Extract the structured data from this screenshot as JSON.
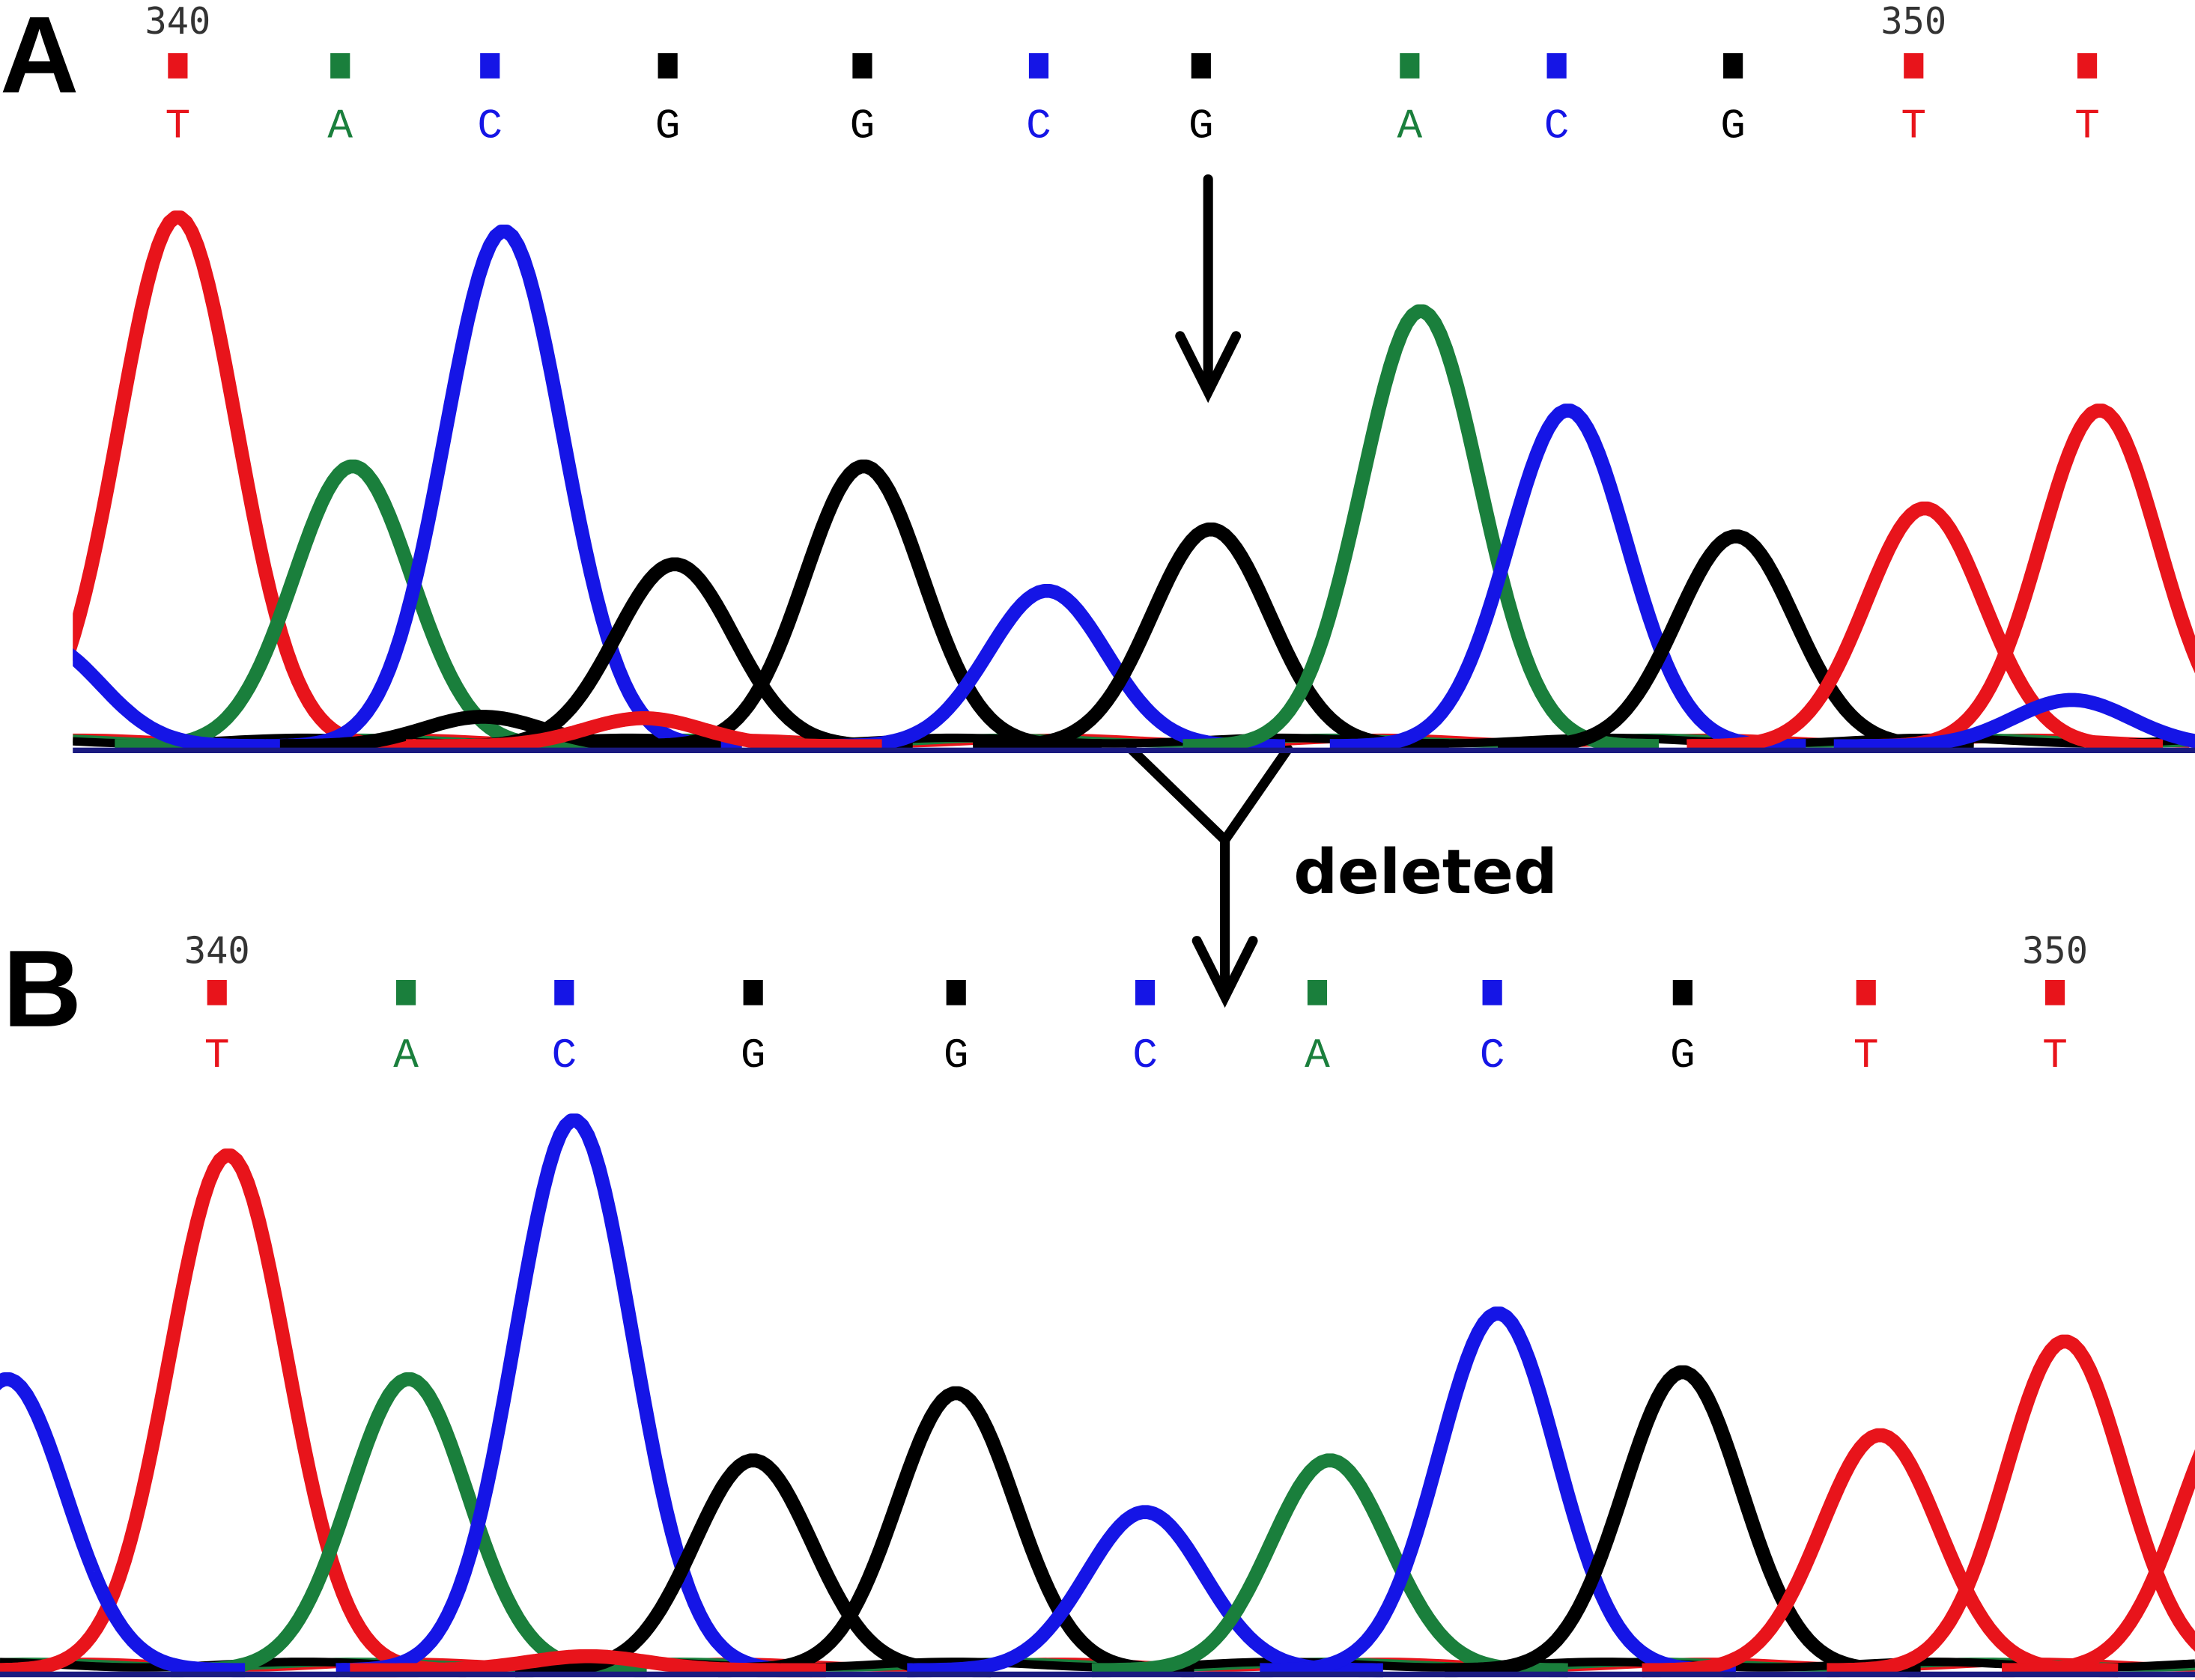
{
  "base_colors": {
    "T": "#e8141b",
    "A": "#1a7f3c",
    "C": "#1515e6",
    "G": "#000000"
  },
  "panels": [
    {
      "label": "A",
      "ruler": [
        "340",
        null,
        null,
        null,
        null,
        null,
        null,
        null,
        null,
        null,
        "350",
        null
      ],
      "bases": [
        "T",
        "A",
        "C",
        "G",
        "G",
        "C",
        "G",
        "A",
        "C",
        "G",
        "T",
        "T"
      ]
    },
    {
      "label": "B",
      "ruler": [
        "340",
        null,
        null,
        null,
        null,
        null,
        null,
        null,
        null,
        null,
        "350"
      ],
      "bases": [
        "T",
        "A",
        "C",
        "G",
        "G",
        "C",
        "A",
        "C",
        "G",
        "T",
        "T"
      ]
    }
  ],
  "annotation": "deleted"
}
